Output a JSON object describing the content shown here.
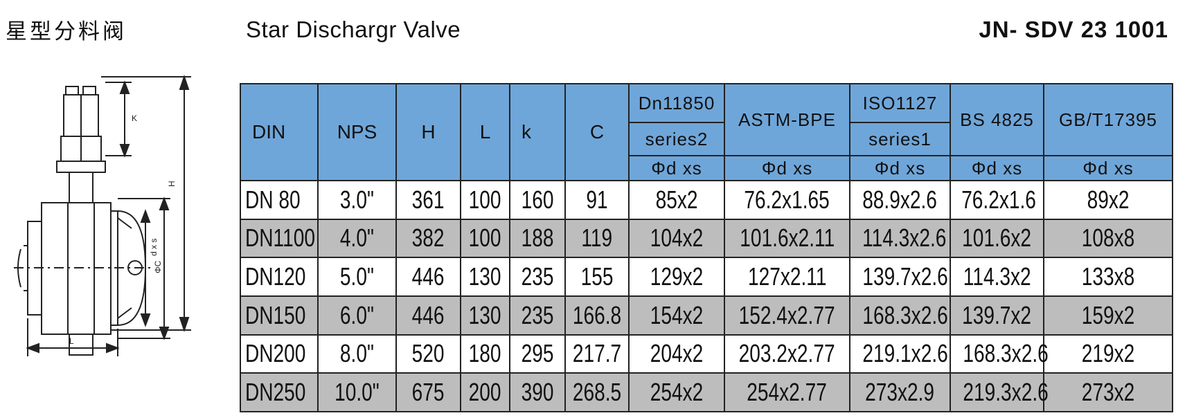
{
  "header": {
    "title_cn": "星型分料阀",
    "title_en": "Star Dischargr Valve",
    "code": "JN- SDV 23 1001"
  },
  "drawing": {
    "labels": {
      "k": "K",
      "h": "H",
      "l": "L",
      "c": "ΦC",
      "d": "d x s"
    }
  },
  "table": {
    "headers": {
      "din": "DIN",
      "nps": "NPS",
      "h": "H",
      "l": "L",
      "k": "k",
      "c": "C",
      "dn11850": "Dn11850",
      "dn11850_sub": "series2",
      "astm": "ASTM-BPE",
      "iso": "ISO1127",
      "iso_sub": "series1",
      "bs": "BS 4825",
      "gb": "GB/T17395",
      "unit": "Φd xs"
    },
    "rows": [
      {
        "din": "DN 80",
        "nps": "3.0\"",
        "h": "361",
        "l": "100",
        "k": "160",
        "c": "91",
        "dn11850": "85x2",
        "astm": "76.2x1.65",
        "iso": "88.9x2.6",
        "bs": "76.2x1.6",
        "gb": "89x2"
      },
      {
        "din": "DN1100",
        "nps": "4.0\"",
        "h": "382",
        "l": "100",
        "k": "188",
        "c": "119",
        "dn11850": "104x2",
        "astm": "101.6x2.11",
        "iso": "114.3x2.6",
        "bs": "101.6x2",
        "gb": "108x8"
      },
      {
        "din": "DN120",
        "nps": "5.0\"",
        "h": "446",
        "l": "130",
        "k": "235",
        "c": "155",
        "dn11850": "129x2",
        "astm": "127x2.11",
        "iso": "139.7x2.6",
        "bs": "114.3x2",
        "gb": "133x8"
      },
      {
        "din": "DN150",
        "nps": "6.0\"",
        "h": "446",
        "l": "130",
        "k": "235",
        "c": "166.8",
        "dn11850": "154x2",
        "astm": "152.4x2.77",
        "iso": "168.3x2.6",
        "bs": "139.7x2",
        "gb": "159x2"
      },
      {
        "din": "DN200",
        "nps": "8.0\"",
        "h": "520",
        "l": "180",
        "k": "295",
        "c": "217.7",
        "dn11850": "204x2",
        "astm": "203.2x2.77",
        "iso": "219.1x2.6",
        "bs": "168.3x2.6",
        "gb": "219x2"
      },
      {
        "din": "DN250",
        "nps": "10.0\"",
        "h": "675",
        "l": "200",
        "k": "390",
        "c": "268.5",
        "dn11850": "254x2",
        "astm": "254x2.77",
        "iso": "273x2.9",
        "bs": "219.3x2.6",
        "gb": "273x2"
      }
    ]
  }
}
